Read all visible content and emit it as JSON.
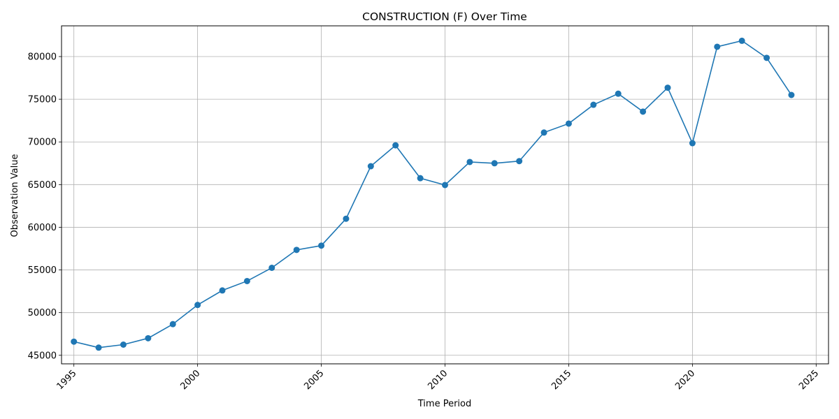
{
  "chart_data": {
    "type": "line",
    "title": "CONSTRUCTION (F) Over Time",
    "xlabel": "Time Period",
    "ylabel": "Observation Value",
    "xlim": [
      1994.5,
      2025.5
    ],
    "ylim": [
      44000,
      83600
    ],
    "x_ticks": [
      1995,
      2000,
      2005,
      2010,
      2015,
      2020,
      2025
    ],
    "y_ticks": [
      45000,
      50000,
      55000,
      60000,
      65000,
      70000,
      75000,
      80000
    ],
    "grid": true,
    "color": "#1f77b4",
    "marker": "circle",
    "series": [
      {
        "x": [
          1995,
          1996,
          1997,
          1998,
          1999,
          2000,
          2001,
          2002,
          2003,
          2004,
          2005,
          2006,
          2007,
          2008,
          2009,
          2010,
          2011,
          2012,
          2013,
          2014,
          2015,
          2016,
          2017,
          2018,
          2019,
          2020,
          2021,
          2022,
          2023,
          2024
        ],
        "values": [
          46600,
          45900,
          46250,
          47000,
          48650,
          50900,
          52600,
          53700,
          55250,
          57350,
          57850,
          61000,
          67150,
          69600,
          65750,
          64950,
          67650,
          67500,
          67750,
          71100,
          72150,
          74350,
          75650,
          73550,
          76350,
          69850,
          81150,
          81850,
          79850,
          75500
        ]
      }
    ]
  }
}
